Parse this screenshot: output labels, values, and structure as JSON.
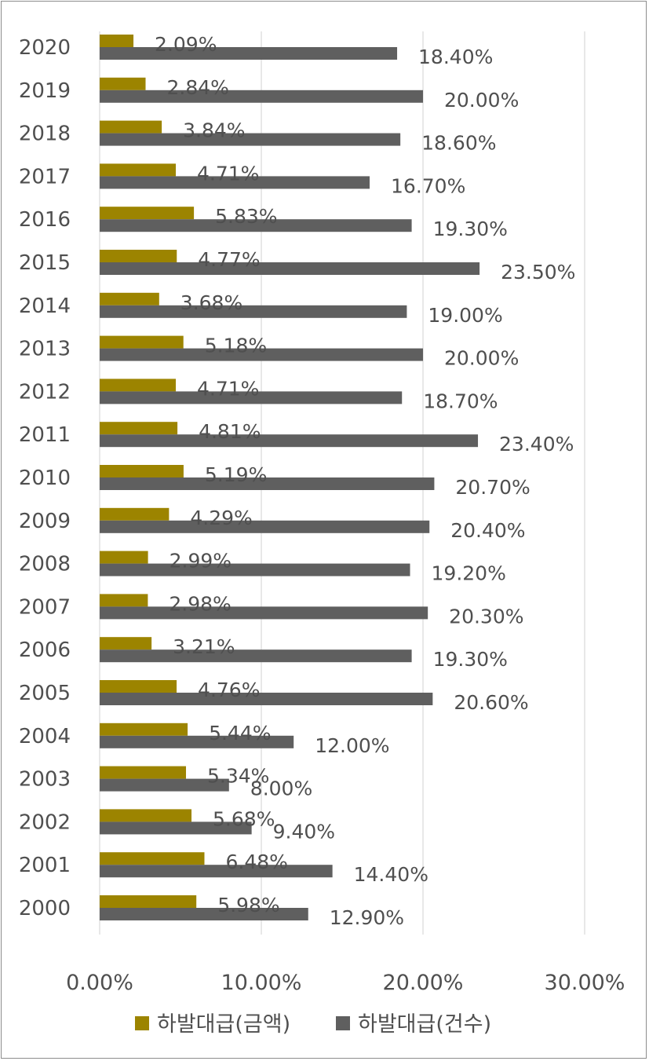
{
  "chart_data": {
    "type": "bar",
    "orientation": "horizontal",
    "categories": [
      "2020",
      "2019",
      "2018",
      "2017",
      "2016",
      "2015",
      "2014",
      "2013",
      "2012",
      "2011",
      "2010",
      "2009",
      "2008",
      "2007",
      "2006",
      "2005",
      "2004",
      "2003",
      "2002",
      "2001",
      "2000"
    ],
    "series": [
      {
        "name": "하발대급(금액)",
        "color": "#9c8400",
        "values": [
          2.09,
          2.84,
          3.84,
          4.71,
          5.83,
          4.77,
          3.68,
          5.18,
          4.71,
          4.81,
          5.19,
          4.29,
          2.99,
          2.98,
          3.21,
          4.76,
          5.44,
          5.34,
          5.68,
          6.48,
          5.98
        ],
        "labels": [
          "2.09%",
          "2.84%",
          "3.84%",
          "4.71%",
          "5.83%",
          "4.77%",
          "3.68%",
          "5.18%",
          "4.71%",
          "4.81%",
          "5.19%",
          "4.29%",
          "2.99%",
          "2.98%",
          "3.21%",
          "4.76%",
          "5.44%",
          "5.34%",
          "5.68%",
          "6.48%",
          "5.98%"
        ]
      },
      {
        "name": "하발대급(건수)",
        "color": "#5f5f5f",
        "values": [
          18.4,
          20.0,
          18.6,
          16.7,
          19.3,
          23.5,
          19.0,
          20.0,
          18.7,
          23.4,
          20.7,
          20.4,
          19.2,
          20.3,
          19.3,
          20.6,
          12.0,
          8.0,
          9.4,
          14.4,
          12.9
        ],
        "labels": [
          "18.40%",
          "20.00%",
          "18.60%",
          "16.70%",
          "19.30%",
          "23.50%",
          "19.00%",
          "20.00%",
          "18.70%",
          "23.40%",
          "20.70%",
          "20.40%",
          "19.20%",
          "20.30%",
          "19.30%",
          "20.60%",
          "12.00%",
          "8.00%",
          "9.40%",
          "14.40%",
          "12.90%"
        ]
      }
    ],
    "xlim": [
      0,
      30
    ],
    "xticks": [
      0,
      10,
      20,
      30
    ],
    "xtick_labels": [
      "0.00%",
      "10.00%",
      "20.00%",
      "30.00%"
    ],
    "grid": true,
    "legend_position": "bottom"
  }
}
